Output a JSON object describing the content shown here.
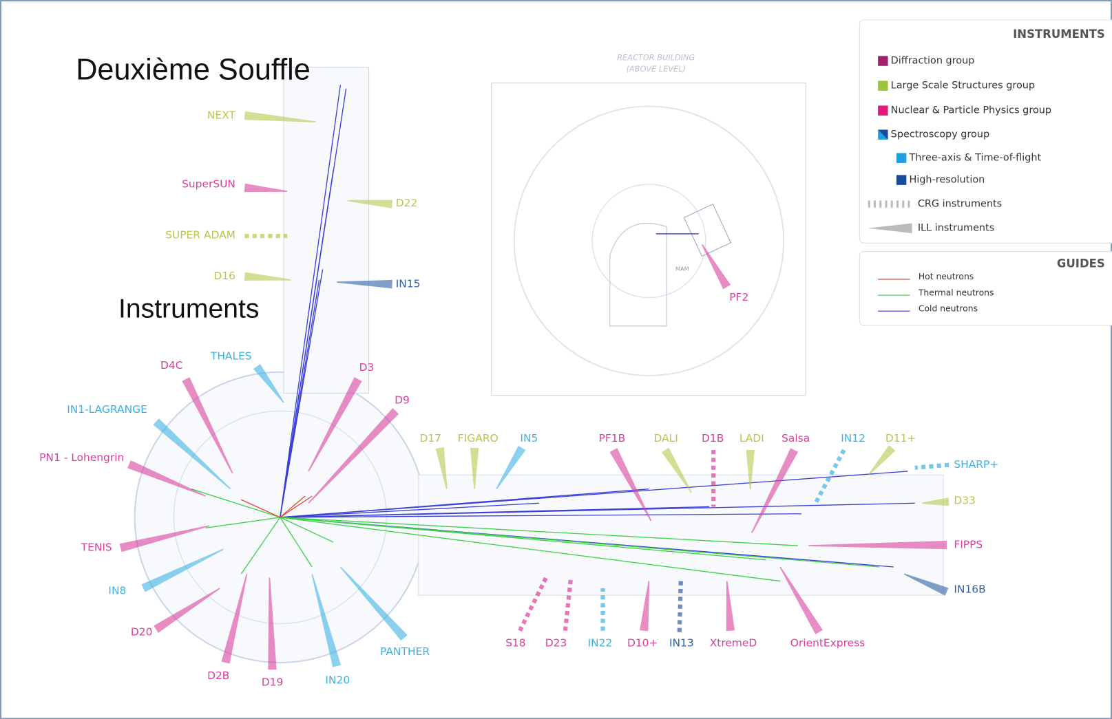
{
  "overlay": {
    "title": "Deuxième Souffle",
    "subtitle": "Instruments"
  },
  "reactor_building": {
    "line1": "REACTOR BUILDING",
    "line2": "(ABOVE LEVEL)",
    "mam": "MAM"
  },
  "legend": {
    "instruments_title": "INSTRUMENTS",
    "items": [
      "Diffraction group",
      "Large Scale Structures group",
      "Nuclear & Particle Physics group",
      "Spectroscopy group",
      "Three-axis & Time-of-flight",
      "High-resolution",
      "CRG instruments",
      "ILL instruments"
    ],
    "guides_title": "GUIDES",
    "guides": [
      "Hot neutrons",
      "Thermal neutrons",
      "Cold neutrons"
    ]
  },
  "instruments": [
    "NEXT",
    "SuperSUN",
    "D22",
    "SUPER ADAM",
    "D16",
    "IN15",
    "THALES",
    "D4C",
    "D3",
    "D9",
    "IN1-LAGRANGE",
    "PN1 - Lohengrin",
    "TENIS",
    "IN8",
    "D20",
    "D2B",
    "D19",
    "IN20",
    "PANTHER",
    "D17",
    "FIGARO",
    "IN5",
    "PF1B",
    "DALI",
    "D1B",
    "LADI",
    "Salsa",
    "IN12",
    "D11+",
    "SHARP+",
    "D33",
    "FIPPS",
    "IN16B",
    "S18",
    "D23",
    "IN22",
    "D10+",
    "IN13",
    "XtremeD",
    "OrientExpress",
    "PF2"
  ]
}
